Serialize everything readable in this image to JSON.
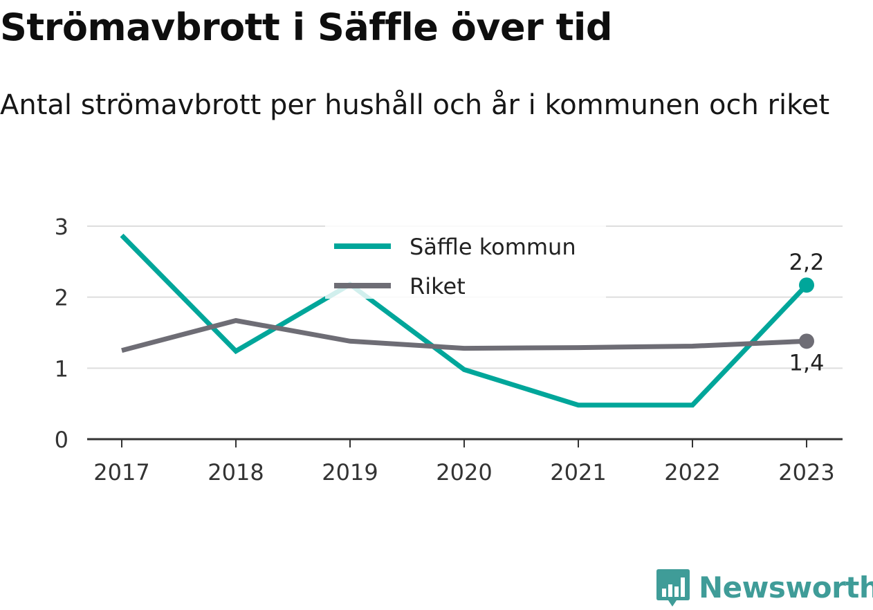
{
  "title": "Strömavbrott i Säffle över tid",
  "subtitle": "Antal strömavbrott per hushåll och år i kommunen och riket",
  "brand": {
    "name": "Newsworthy",
    "color": "#3f9c98",
    "icon": "bar-chart-speech-bubble-icon"
  },
  "colors": {
    "saffle": "#00a69a",
    "riket": "#6e6d75",
    "grid": "#dddddd",
    "axis": "#333333"
  },
  "chart_data": {
    "type": "line",
    "x": [
      "2017",
      "2018",
      "2019",
      "2020",
      "2021",
      "2022",
      "2023"
    ],
    "y_ticks": [
      "0",
      "1",
      "2",
      "3"
    ],
    "ylim": [
      0,
      3
    ],
    "grid": true,
    "legend_position": "top-center",
    "series": [
      {
        "name": "Säffle kommun",
        "color": "#00a69a",
        "values": [
          2.87,
          1.24,
          2.18,
          0.98,
          0.48,
          0.48,
          2.17
        ],
        "end_label": "2,2"
      },
      {
        "name": "Riket",
        "color": "#6e6d75",
        "values": [
          1.25,
          1.67,
          1.38,
          1.28,
          1.29,
          1.31,
          1.38
        ],
        "end_label": "1,4"
      }
    ]
  }
}
